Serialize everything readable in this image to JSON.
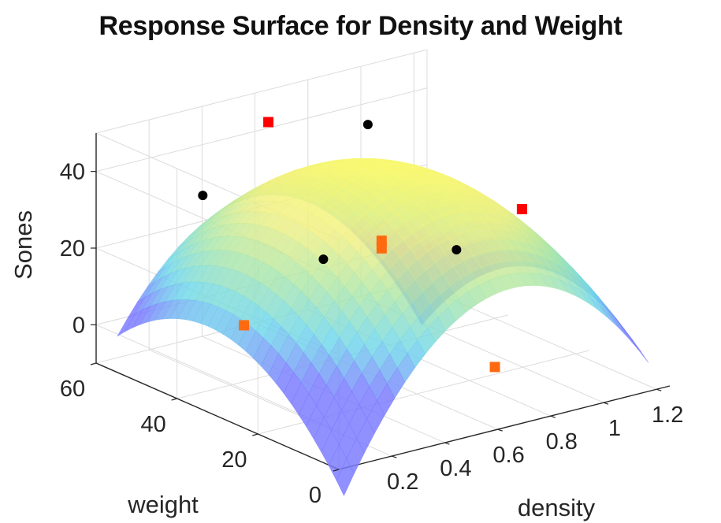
{
  "chart_data": {
    "type": "surface",
    "title": "Response Surface for Density and Weight",
    "xlabel": "density",
    "ylabel": "weight",
    "zlabel": "Sones",
    "xlim": [
      0,
      1.25
    ],
    "ylim": [
      0,
      60
    ],
    "zlim": [
      -10,
      50
    ],
    "xticks": [
      "0.2",
      "0.4",
      "0.6",
      "0.8",
      "1",
      "1.2"
    ],
    "yticks": [
      "0",
      "20",
      "40",
      "60"
    ],
    "zticks": [
      "0",
      "20",
      "40"
    ],
    "grid": true,
    "surface": {
      "model": "quadratic response surface",
      "peak": {
        "density": 0.62,
        "weight": 30,
        "sones": 44
      },
      "x_range": [
        0.05,
        1.2
      ],
      "y_range": [
        2,
        58
      ]
    },
    "series": [
      {
        "marker": "circle",
        "color": "#000000",
        "points": [
          {
            "density": 0.25,
            "weight": 50,
            "sones": 34
          },
          {
            "density": 0.4,
            "weight": 30,
            "sones": 24
          },
          {
            "density": 0.95,
            "weight": 55,
            "sones": 38
          },
          {
            "density": 0.75,
            "weight": 20,
            "sones": 25
          }
        ]
      },
      {
        "marker": "square",
        "color": "#ff0000",
        "points": [
          {
            "density": 0.1,
            "weight": 30,
            "sones": 12
          },
          {
            "density": 0.62,
            "weight": 2,
            "sones": 5
          },
          {
            "density": 1.15,
            "weight": 30,
            "sones": 24
          },
          {
            "density": 0.62,
            "weight": 58,
            "sones": 43
          },
          {
            "density": 0.62,
            "weight": 30,
            "sones": 25
          },
          {
            "density": 0.62,
            "weight": 30,
            "sones": 23
          }
        ]
      }
    ]
  }
}
